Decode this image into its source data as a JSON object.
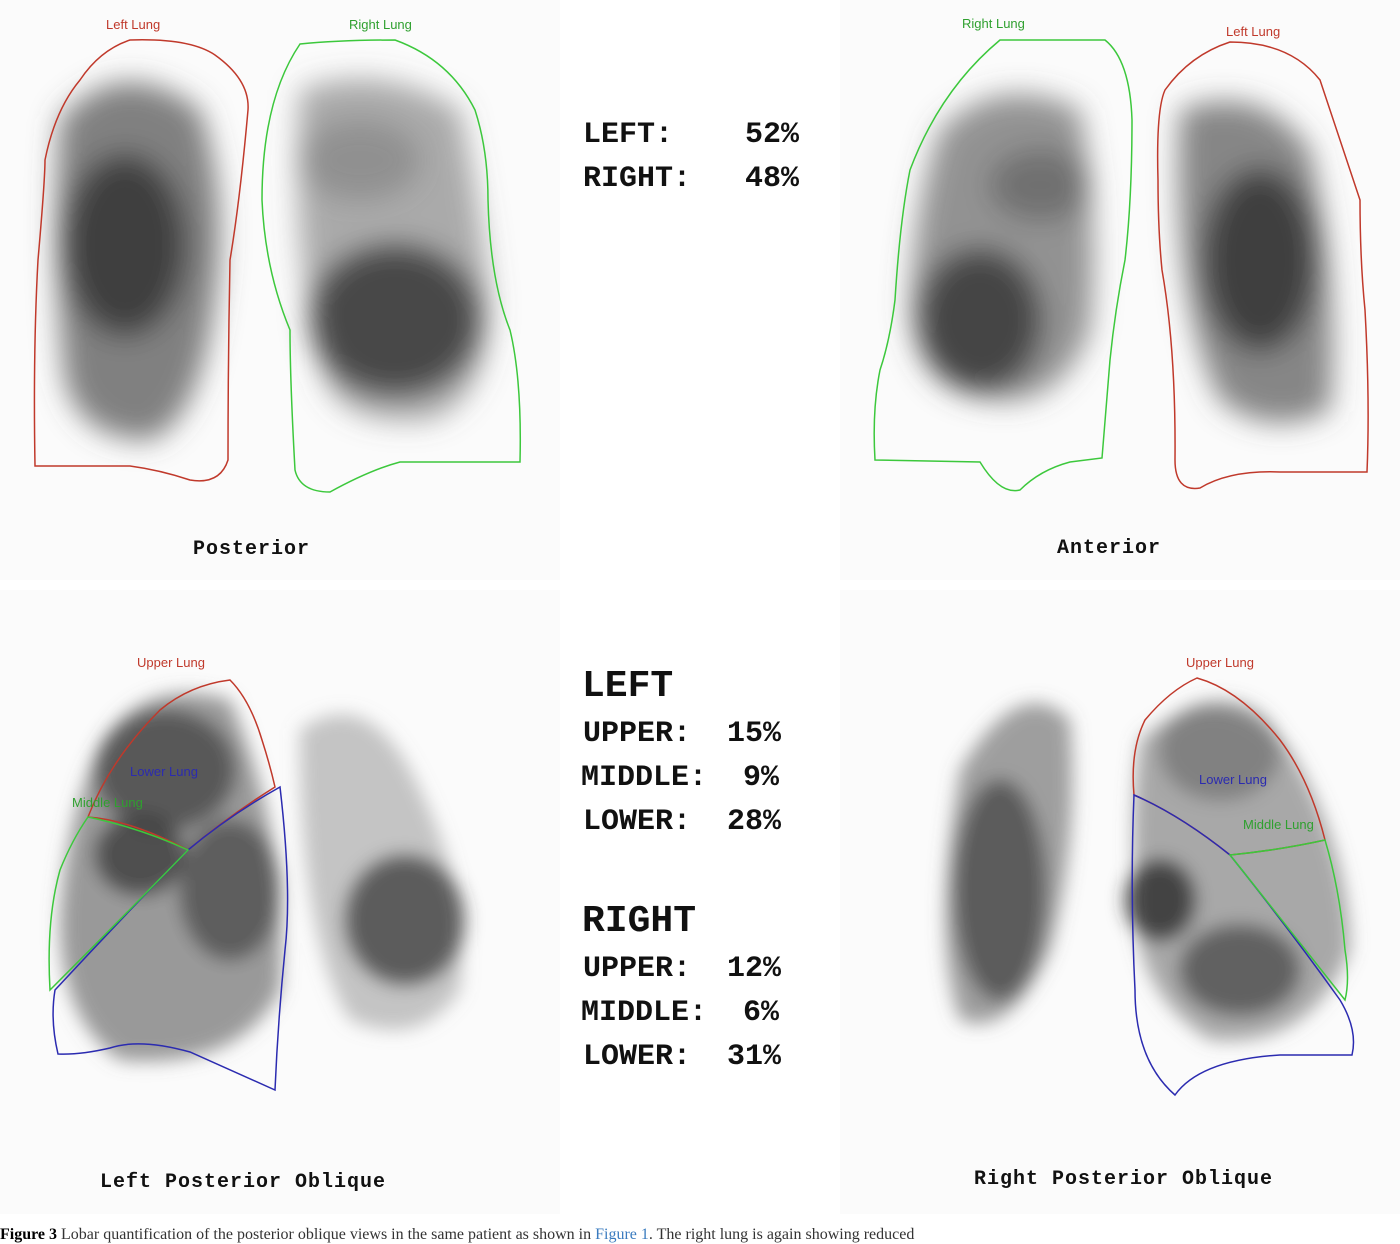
{
  "colors": {
    "left_lung_roi": "#c0392b",
    "right_lung_roi": "#3cc83c",
    "upper_lung_roi": "#c0392b",
    "lower_lung_roi": "#2b2bb0",
    "middle_lung_roi": "#3cc83c"
  },
  "panels": {
    "posterior": {
      "label": "Posterior",
      "roi_left": "Left Lung",
      "roi_right": "Right Lung"
    },
    "anterior": {
      "label": "Anterior",
      "roi_right": "Right Lung",
      "roi_left": "Left Lung"
    },
    "lpo": {
      "label": "Left Posterior Oblique",
      "roi_upper": "Upper Lung",
      "roi_lower": "Lower Lung",
      "roi_middle": "Middle Lung"
    },
    "rpo": {
      "label": "Right Posterior Oblique",
      "roi_upper": "Upper Lung",
      "roi_lower": "Lower Lung",
      "roi_middle": "Middle Lung"
    }
  },
  "totals": {
    "left": "LEFT:    52%",
    "right": "RIGHT:   48%"
  },
  "lobar": {
    "left_heading": "LEFT",
    "left_upper": "UPPER:  15%",
    "left_middle": "MIDDLE:  9%",
    "left_lower": "LOWER:  28%",
    "right_heading": "RIGHT",
    "right_upper": "UPPER:  12%",
    "right_middle": "MIDDLE:  6%",
    "right_lower": "LOWER:  31%"
  },
  "caption": {
    "prefix": "Figure 3",
    "text": " Lobar quantification of the posterior oblique views in the same patient as shown in ",
    "link": "Figure 1",
    "suffix": ". The right lung is again showing reduced"
  }
}
